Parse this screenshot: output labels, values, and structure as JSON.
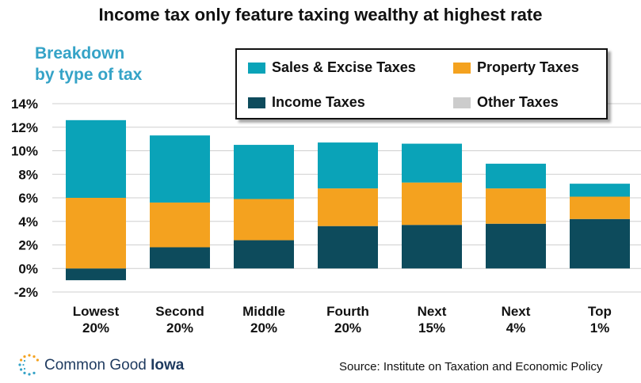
{
  "title": "Income tax only feature taxing wealthy at highest rate",
  "subtitle_lines": [
    "Breakdown",
    "by type of tax"
  ],
  "colors": {
    "sales": "#0aa3b8",
    "property": "#f4a21f",
    "income": "#0d4b5c",
    "other": "#cccccc",
    "grid": "#cfcfcf",
    "subtitle": "#35a3c7"
  },
  "chart_data": {
    "type": "bar",
    "stacked": true,
    "categories": [
      [
        "Lowest",
        "20%"
      ],
      [
        "Second",
        "20%"
      ],
      [
        "Middle",
        "20%"
      ],
      [
        "Fourth",
        "20%"
      ],
      [
        "Next",
        "15%"
      ],
      [
        "Next",
        "4%"
      ],
      [
        "Top",
        "1%"
      ]
    ],
    "series": [
      {
        "name": "Income Taxes",
        "key": "income",
        "values": [
          -1.0,
          1.8,
          2.4,
          3.6,
          3.7,
          3.8,
          4.2
        ]
      },
      {
        "name": "Property Taxes",
        "key": "property",
        "values": [
          6.0,
          3.8,
          3.5,
          3.2,
          3.6,
          3.0,
          1.9
        ]
      },
      {
        "name": "Sales & Excise Taxes",
        "key": "sales",
        "values": [
          6.6,
          5.7,
          4.6,
          3.9,
          3.3,
          2.1,
          1.1
        ]
      },
      {
        "name": "Other Taxes",
        "key": "other",
        "values": [
          0,
          0,
          0,
          0,
          0,
          0,
          0
        ]
      }
    ],
    "ylim": [
      -2,
      14
    ],
    "yticks": [
      -2,
      0,
      2,
      4,
      6,
      8,
      10,
      12,
      14
    ],
    "ytick_labels": [
      "-2%",
      "0%",
      "2%",
      "4%",
      "6%",
      "8%",
      "10%",
      "12%",
      "14%"
    ],
    "grid": true,
    "legend_position": "top-right"
  },
  "legend": [
    {
      "label": "Sales & Excise Taxes",
      "key": "sales"
    },
    {
      "label": "Property Taxes",
      "key": "property"
    },
    {
      "label": "Income Taxes",
      "key": "income"
    },
    {
      "label": "Other Taxes",
      "key": "other"
    }
  ],
  "logo": {
    "name_regular": "Common Good ",
    "name_bold": "Iowa"
  },
  "source": "Source: Institute on Taxation and Economic Policy"
}
